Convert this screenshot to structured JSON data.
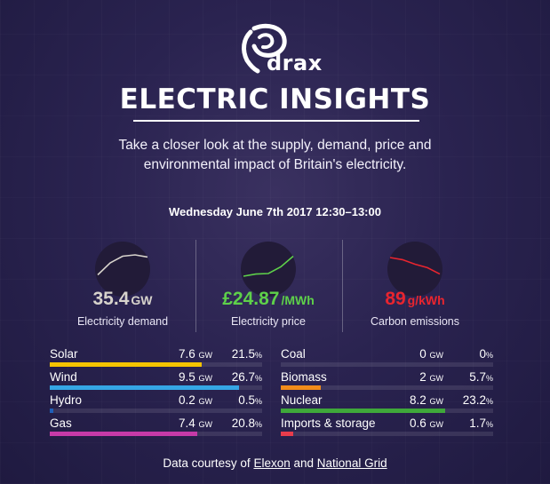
{
  "header": {
    "logo_text": "drax",
    "title": "ELECTRIC INSIGHTS",
    "intro": "Take a closer look at the supply, demand, price and environmental impact of Britain's electricity.",
    "datetime": "Wednesday June 7th 2017 12:30–13:00"
  },
  "metrics": [
    {
      "value": "35.4",
      "unit": "GW",
      "label": "Electricity demand",
      "color": "#d7d3cc",
      "trend": [
        0.15,
        0.6,
        0.85,
        0.9,
        0.82
      ]
    },
    {
      "value": "£24.87",
      "unit": "/MWh",
      "label": "Electricity price",
      "color": "#5ed04a",
      "trend": [
        0.1,
        0.18,
        0.2,
        0.45,
        0.85
      ]
    },
    {
      "value": "89",
      "unit": "g/kWh",
      "label": "Carbon emissions",
      "color": "#e8252f",
      "trend": [
        0.8,
        0.72,
        0.55,
        0.42,
        0.18
      ]
    }
  ],
  "generation_left": [
    {
      "name": "Solar",
      "gw": "7.6",
      "gw_unit": "GW",
      "pct": "21.5",
      "pct_unit": "%",
      "share": 0.215,
      "color": "#f5c400"
    },
    {
      "name": "Wind",
      "gw": "9.5",
      "gw_unit": "GW",
      "pct": "26.7",
      "pct_unit": "%",
      "share": 0.267,
      "color": "#35a6e5"
    },
    {
      "name": "Hydro",
      "gw": "0.2",
      "gw_unit": "GW",
      "pct": "0.5",
      "pct_unit": "%",
      "share": 0.005,
      "color": "#1f5fb8"
    },
    {
      "name": "Gas",
      "gw": "7.4",
      "gw_unit": "GW",
      "pct": "20.8",
      "pct_unit": "%",
      "share": 0.208,
      "color": "#c63aa8"
    }
  ],
  "generation_right": [
    {
      "name": "Coal",
      "gw": "0",
      "gw_unit": "GW",
      "pct": "0",
      "pct_unit": "%",
      "share": 0.0,
      "color": "#8b86a0"
    },
    {
      "name": "Biomass",
      "gw": "2",
      "gw_unit": "GW",
      "pct": "5.7",
      "pct_unit": "%",
      "share": 0.057,
      "color": "#f28c1a"
    },
    {
      "name": "Nuclear",
      "gw": "8.2",
      "gw_unit": "GW",
      "pct": "23.2",
      "pct_unit": "%",
      "share": 0.232,
      "color": "#3fa83a"
    },
    {
      "name": "Imports & storage",
      "gw": "0.6",
      "gw_unit": "GW",
      "pct": "1.7",
      "pct_unit": "%",
      "share": 0.017,
      "color": "#e83c4c"
    }
  ],
  "footer": {
    "prefix": "Data courtesy of",
    "link1": "Elexon",
    "and": "and",
    "link2": "National Grid"
  }
}
